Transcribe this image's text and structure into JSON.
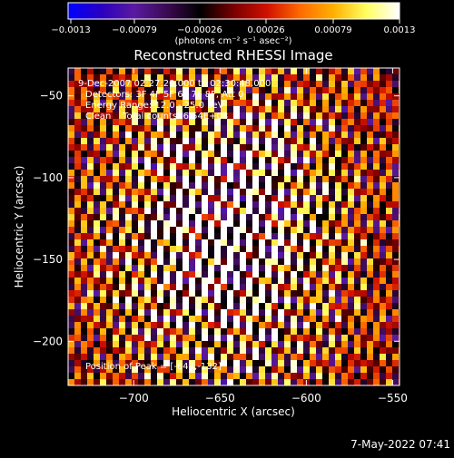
{
  "chart_data": {
    "type": "heatmap",
    "title": "Reconstructed RHESSI Image",
    "xlabel": "Heliocentric X (arcsec)",
    "ylabel": "Heliocentric Y (arcsec)",
    "xlim": [
      -738,
      -546
    ],
    "ylim": [
      -227,
      -33
    ],
    "x_ticks": [
      -700,
      -650,
      -600,
      -550
    ],
    "x_tick_labels": [
      "−700",
      "−650",
      "−600",
      "−550"
    ],
    "y_ticks": [
      -50,
      -100,
      -150,
      -200
    ],
    "y_tick_labels": [
      "−50",
      "−100",
      "−150",
      "−200"
    ],
    "colorbar": {
      "min": -0.0013,
      "max": 0.0013,
      "tick_labels": [
        "−0.0013",
        "−0.00079",
        "−0.00026",
        "0.00026",
        "0.00079",
        "0.0013"
      ],
      "units_label": "(photons cm⁻² s⁻¹ asec⁻²)",
      "colormap": [
        "#0000ff",
        "#2a00c0",
        "#5a1aa0",
        "#3a0a50",
        "#000000",
        "#7a0000",
        "#d01000",
        "#ff6a00",
        "#ffb000",
        "#ffff60",
        "#ffffff"
      ]
    },
    "peak": {
      "x": -647,
      "y": -132
    }
  },
  "annotations": {
    "time_range": "9-Dec-2007 02:27:20.000 to 02:30:48.000",
    "detectors": "Detectors: 3F 4F 5F 6F 7F 8F, Att 0",
    "energy": "Energy Range: 12.0 - 25.0 keV",
    "method": "Clean    Total counts: 6.54E+03",
    "peak_text": "Position of Peak = [-647,-132]"
  },
  "footer_timestamp": "7-May-2022 07:41"
}
